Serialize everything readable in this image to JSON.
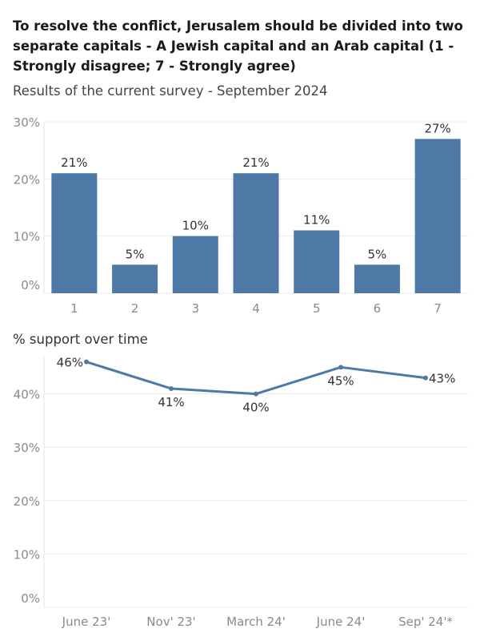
{
  "header": {
    "title": "To resolve the conflict, Jerusalem should be divided into two separate capitals - A Jewish capital and an Arab capital (1 - Strongly disagree; 7 - Strongly agree)",
    "subtitle": "Results of the current survey - September 2024"
  },
  "trend_section": {
    "title": "% support over time"
  },
  "colors": {
    "bar": "#4e79a7",
    "line": "#4e79a7"
  },
  "chart_data": [
    {
      "type": "bar",
      "title": "Results of the current survey - September 2024",
      "categories": [
        "1",
        "2",
        "3",
        "4",
        "5",
        "6",
        "7"
      ],
      "values": [
        21,
        5,
        10,
        21,
        11,
        5,
        27
      ],
      "value_labels": [
        "21%",
        "5%",
        "10%",
        "21%",
        "11%",
        "5%",
        "27%"
      ],
      "yticks": [
        0,
        10,
        20,
        30
      ],
      "ytick_labels": [
        "0%",
        "10%",
        "20%",
        "30%"
      ],
      "ylim": [
        0,
        30
      ],
      "grid": true,
      "xlabel": "",
      "ylabel": ""
    },
    {
      "type": "line",
      "title": "% support over time",
      "categories": [
        "June 23'",
        "Nov' 23'",
        "March 24'",
        "June 24'",
        "Sep' 24'*"
      ],
      "values": [
        46,
        41,
        40,
        45,
        43
      ],
      "value_labels": [
        "46%",
        "41%",
        "40%",
        "45%",
        "43%"
      ],
      "yticks": [
        0,
        10,
        20,
        30,
        40
      ],
      "ytick_labels": [
        "0%",
        "10%",
        "20%",
        "30%",
        "40%"
      ],
      "ylim": [
        0,
        47
      ],
      "grid": true,
      "xlabel": "",
      "ylabel": ""
    }
  ]
}
